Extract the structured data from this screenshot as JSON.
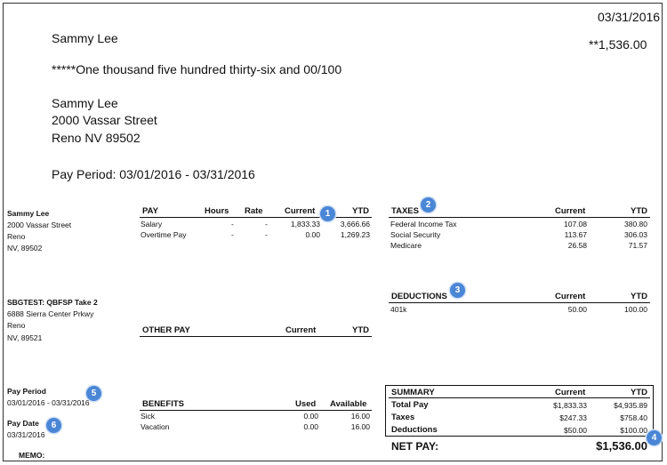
{
  "check": {
    "date": "03/31/2016",
    "payee": "Sammy Lee",
    "amount": "**1,536.00",
    "amount_words": "*****One thousand five hundred thirty-six and 00/100",
    "address": [
      "Sammy Lee",
      "2000 Vassar Street",
      "Reno NV 89502"
    ],
    "pay_period": "Pay Period: 03/01/2016 - 03/31/2016"
  },
  "employee": {
    "lines": [
      "Sammy Lee",
      "2000 Vassar Street",
      "Reno",
      "NV, 89502"
    ]
  },
  "company": {
    "lines": [
      "SBGTEST: QBFSP Take 2",
      "6888 Sierra Center Prkwy",
      "Reno",
      "NV, 89521"
    ]
  },
  "pay_period_info": {
    "label": "Pay Period",
    "value": "03/01/2016 - 03/31/2016"
  },
  "pay_date_info": {
    "label": "Pay Date",
    "value": "03/31/2016"
  },
  "memo_label": "MEMO:",
  "pay": {
    "headers": {
      "name": "PAY",
      "hours": "Hours",
      "rate": "Rate",
      "current": "Current",
      "ytd": "YTD"
    },
    "rows": [
      {
        "name": "Salary",
        "hours": "-",
        "rate": "-",
        "current": "1,833.33",
        "ytd": "3,666.66"
      },
      {
        "name": "Overtime Pay",
        "hours": "-",
        "rate": "-",
        "current": "0.00",
        "ytd": "1,269.23"
      }
    ]
  },
  "other_pay": {
    "headers": {
      "name": "OTHER PAY",
      "current": "Current",
      "ytd": "YTD"
    }
  },
  "benefits": {
    "headers": {
      "name": "BENEFITS",
      "used": "Used",
      "available": "Available"
    },
    "rows": [
      {
        "name": "Sick",
        "used": "0.00",
        "available": "16.00"
      },
      {
        "name": "Vacation",
        "used": "0.00",
        "available": "16.00"
      }
    ]
  },
  "taxes": {
    "headers": {
      "name": "TAXES",
      "current": "Current",
      "ytd": "YTD"
    },
    "rows": [
      {
        "name": "Federal Income Tax",
        "current": "107.08",
        "ytd": "380.80"
      },
      {
        "name": "Social Security",
        "current": "113.67",
        "ytd": "306.03"
      },
      {
        "name": "Medicare",
        "current": "26.58",
        "ytd": "71.57"
      }
    ]
  },
  "deductions": {
    "headers": {
      "name": "DEDUCTIONS",
      "current": "Current",
      "ytd": "YTD"
    },
    "rows": [
      {
        "name": "401k",
        "current": "50.00",
        "ytd": "100.00"
      }
    ]
  },
  "summary": {
    "headers": {
      "name": "SUMMARY",
      "current": "Current",
      "ytd": "YTD"
    },
    "rows": [
      {
        "name": "Total Pay",
        "current": "$1,833.33",
        "ytd": "$4,935.89"
      },
      {
        "name": "Taxes",
        "current": "$247.33",
        "ytd": "$758.40"
      },
      {
        "name": "Deductions",
        "current": "$50.00",
        "ytd": "$100.00"
      }
    ],
    "net_pay_label": "NET PAY:",
    "net_pay_value": "$1,536.00"
  },
  "badges": [
    "1",
    "2",
    "3",
    "4",
    "5",
    "6"
  ],
  "colors": {
    "badge": "#4a86d6",
    "text": "#111111",
    "border": "#333333"
  }
}
